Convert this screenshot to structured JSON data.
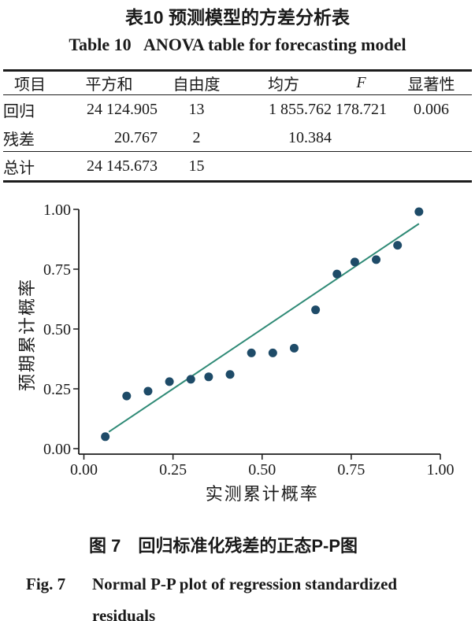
{
  "page": {
    "title_zh": "表10 预测模型的方差分析表",
    "title_en": "Table 10   ANOVA table for forecasting model"
  },
  "table": {
    "headers": [
      "项目",
      "平方和",
      "自由度",
      "均方",
      "F",
      "显著性"
    ],
    "rows": [
      {
        "cells": [
          "回归",
          "24 124.905",
          "13",
          "1 855.762",
          "178.721",
          "0.006"
        ]
      },
      {
        "cells": [
          "残差",
          "20.767",
          "2",
          "10.384",
          "",
          ""
        ]
      },
      {
        "cells": [
          "总计",
          "24 145.673",
          "15",
          "",
          "",
          ""
        ]
      }
    ]
  },
  "chart_data": {
    "type": "scatter",
    "title": "",
    "xlabel": "实测累计概率",
    "ylabel": "预期累计概率",
    "xlim": [
      0,
      1
    ],
    "ylim": [
      0,
      1
    ],
    "xticks": [
      {
        "value": 0,
        "label": "0.00"
      },
      {
        "value": 0.25,
        "label": "0.25"
      },
      {
        "value": 0.5,
        "label": "0.50"
      },
      {
        "value": 0.75,
        "label": "0.75"
      },
      {
        "value": 1,
        "label": "1.00"
      }
    ],
    "yticks": [
      {
        "value": 0,
        "label": "0.00"
      },
      {
        "value": 0.25,
        "label": "0.25"
      },
      {
        "value": 0.5,
        "label": "0.50"
      },
      {
        "value": 0.75,
        "label": "0.75"
      },
      {
        "value": 1,
        "label": "1.00"
      }
    ],
    "grid": false,
    "legend": null,
    "points": [
      [
        0.06,
        0.05
      ],
      [
        0.12,
        0.22
      ],
      [
        0.18,
        0.24
      ],
      [
        0.24,
        0.28
      ],
      [
        0.3,
        0.29
      ],
      [
        0.35,
        0.3
      ],
      [
        0.41,
        0.31
      ],
      [
        0.47,
        0.4
      ],
      [
        0.53,
        0.4
      ],
      [
        0.59,
        0.42
      ],
      [
        0.65,
        0.58
      ],
      [
        0.71,
        0.73
      ],
      [
        0.76,
        0.78
      ],
      [
        0.82,
        0.79
      ],
      [
        0.88,
        0.85
      ],
      [
        0.94,
        0.99
      ]
    ],
    "reference_line": {
      "from": [
        0.07,
        0.07
      ],
      "to": [
        0.94,
        0.94
      ]
    },
    "colors": {
      "point": "#1e4b68",
      "line": "#2f8a76",
      "axis": "#1c1c1c"
    }
  },
  "captions": {
    "fig_zh": "图 7　回归标准化残差的正态P-P图",
    "fig_en_label": "Fig. 7",
    "fig_en_line1": "Normal P-P plot of regression standardized",
    "fig_en_line2": "residuals"
  }
}
